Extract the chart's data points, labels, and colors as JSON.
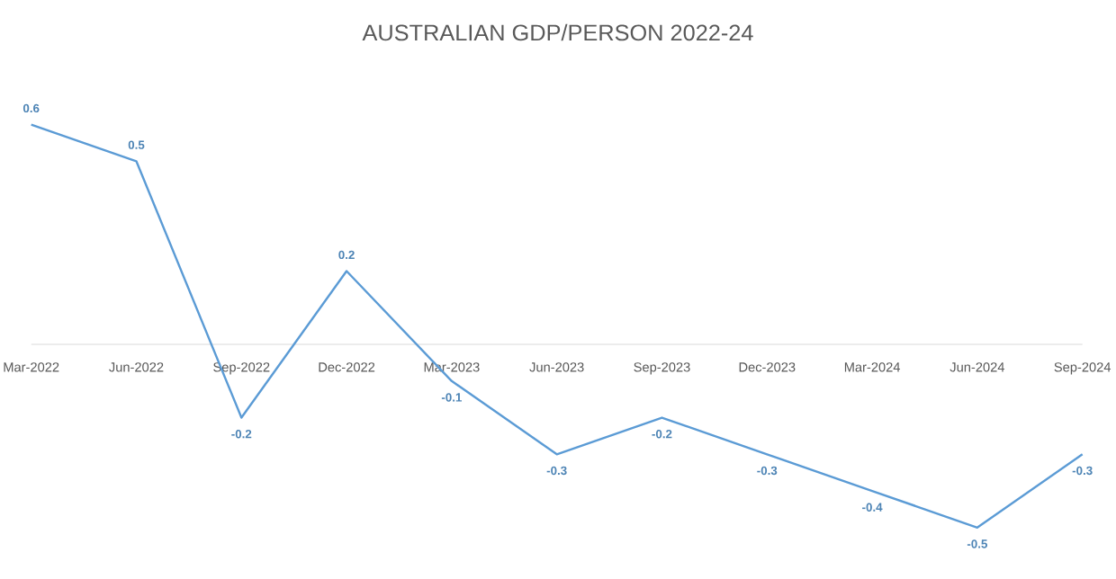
{
  "chart_data": {
    "type": "line",
    "title": "AUSTRALIAN GDP/PERSON 2022-24",
    "categories": [
      "Mar-2022",
      "Jun-2022",
      "Sep-2022",
      "Dec-2022",
      "Mar-2023",
      "Jun-2023",
      "Sep-2023",
      "Dec-2023",
      "Mar-2024",
      "Jun-2024",
      "Sep-2024"
    ],
    "values": [
      0.6,
      0.5,
      -0.2,
      0.2,
      -0.1,
      -0.3,
      -0.2,
      -0.3,
      -0.4,
      -0.5,
      -0.3
    ],
    "color": "#5b9bd5",
    "data_labels": true,
    "tick_labels": "x",
    "marker": "none",
    "line_style": "solid"
  }
}
